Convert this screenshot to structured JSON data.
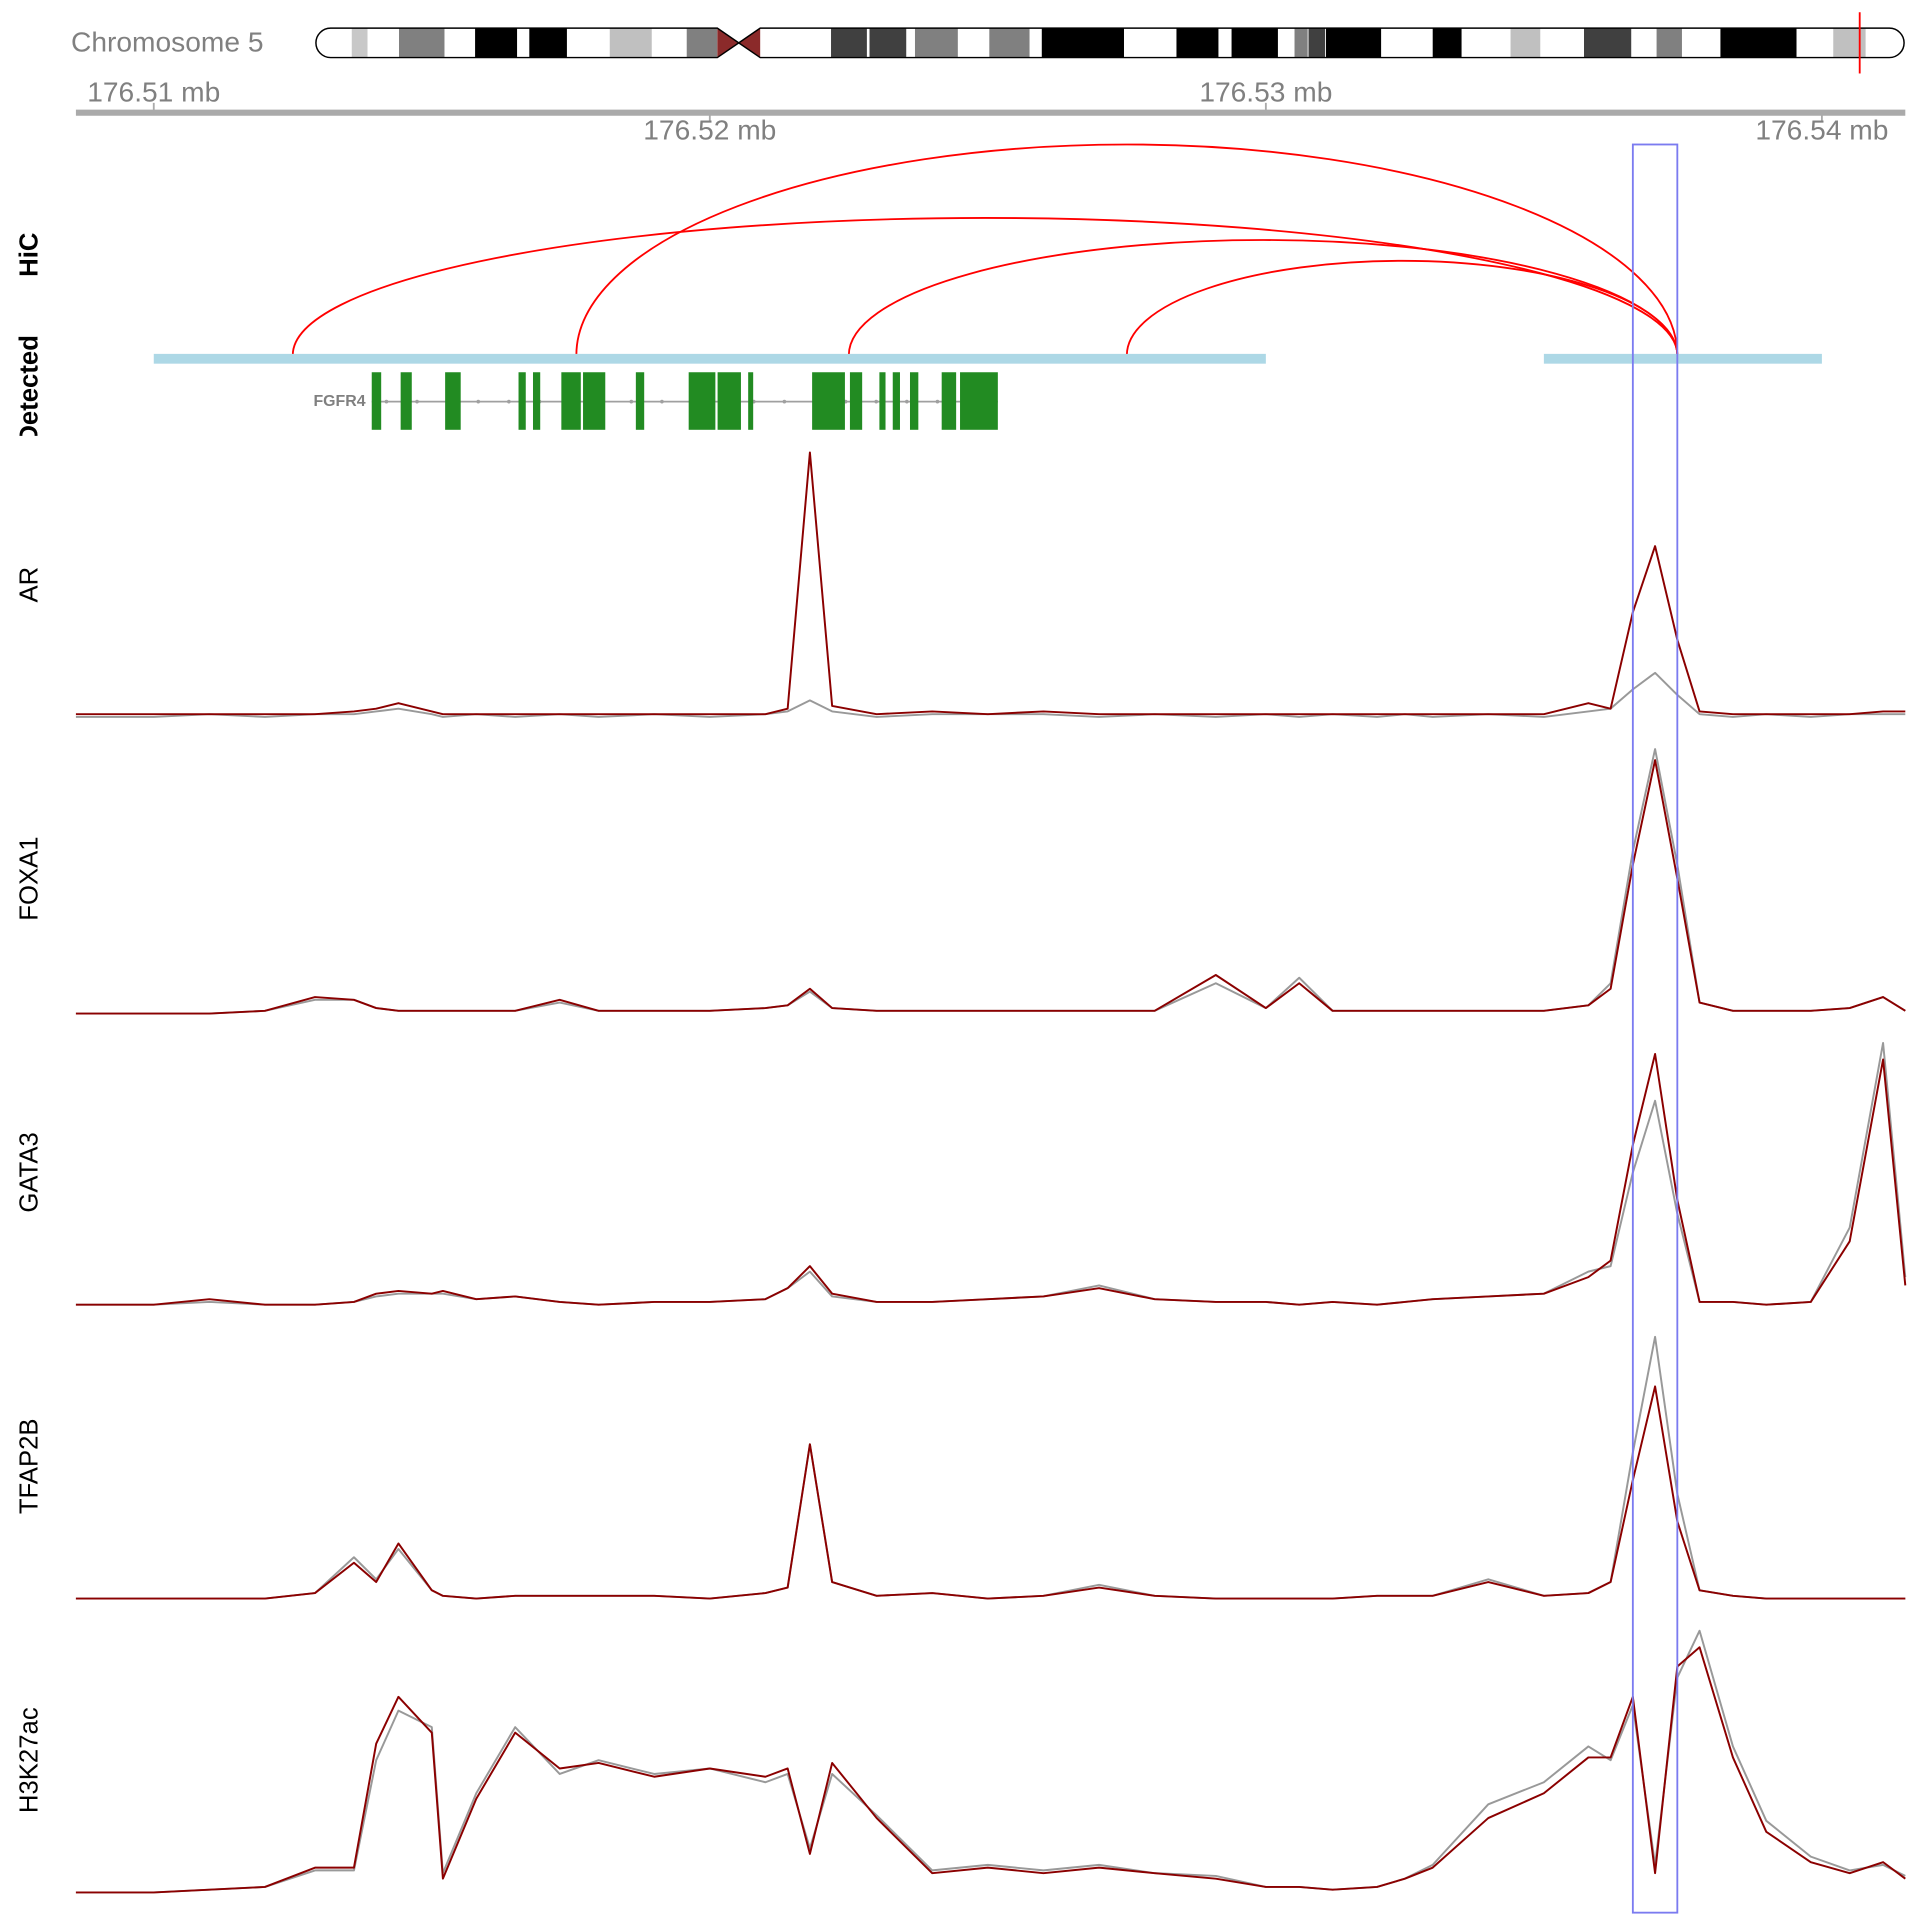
{
  "chart_data": {
    "type": "genome-tracks",
    "chromosome": "Chromosome 5",
    "ideogram": {
      "length": 181.6,
      "outline": "#000000",
      "marker_color": "#ff0000",
      "bands": [
        {
          "start": 4.1,
          "end": 5.9,
          "color": "#c8c8c8"
        },
        {
          "start": 9.5,
          "end": 14.7,
          "color": "#808080"
        },
        {
          "start": 18.2,
          "end": 23.0,
          "color": "#000000"
        },
        {
          "start": 24.4,
          "end": 28.7,
          "color": "#000000"
        },
        {
          "start": 33.6,
          "end": 38.4,
          "color": "#c0c0c0"
        },
        {
          "start": 42.4,
          "end": 45.9,
          "color": "#808080"
        },
        {
          "start": 58.9,
          "end": 63.0,
          "color": "#404040"
        },
        {
          "start": 63.3,
          "end": 67.5,
          "color": "#404040"
        },
        {
          "start": 68.5,
          "end": 73.4,
          "color": "#808080"
        },
        {
          "start": 77.0,
          "end": 81.6,
          "color": "#808080"
        },
        {
          "start": 83.0,
          "end": 92.4,
          "color": "#000000"
        },
        {
          "start": 98.4,
          "end": 103.2,
          "color": "#000000"
        },
        {
          "start": 104.7,
          "end": 110.0,
          "color": "#000000"
        },
        {
          "start": 111.9,
          "end": 113.4,
          "color": "#808080"
        },
        {
          "start": 113.5,
          "end": 115.4,
          "color": "#404040"
        },
        {
          "start": 115.5,
          "end": 121.8,
          "color": "#000000"
        },
        {
          "start": 127.7,
          "end": 131.0,
          "color": "#000000"
        },
        {
          "start": 136.6,
          "end": 140.0,
          "color": "#c0c0c0"
        },
        {
          "start": 145.0,
          "end": 150.4,
          "color": "#404040"
        },
        {
          "start": 153.3,
          "end": 156.2,
          "color": "#808080"
        },
        {
          "start": 160.6,
          "end": 169.3,
          "color": "#000000"
        },
        {
          "start": 173.5,
          "end": 177.2,
          "color": "#c0c0c0"
        }
      ],
      "centromere": {
        "start": 45.9,
        "end": 50.8,
        "color": "#8b2a2a"
      }
    },
    "xlim": [
      176.5086,
      176.5415
    ],
    "xticks": [
      {
        "value": 176.51,
        "label": "176.51 mb"
      },
      {
        "value": 176.52,
        "label": "176.52 mb"
      },
      {
        "value": 176.53,
        "label": "176.53 mb"
      },
      {
        "value": 176.54,
        "label": "176.54 mb"
      }
    ],
    "highlight": {
      "start": 176.5366,
      "end": 176.5374,
      "color": "#7b7bf0"
    },
    "hic": {
      "label": "HiC",
      "color": "#ff0000",
      "ylim": [
        0,
        180
      ],
      "arcs": [
        {
          "start": 176.5125,
          "end": 176.5374,
          "score": 112
        },
        {
          "start": 176.5176,
          "end": 176.5374,
          "score": 172
        },
        {
          "start": 176.5225,
          "end": 176.5374,
          "score": 94
        },
        {
          "start": 176.5275,
          "end": 176.5374,
          "score": 77
        }
      ]
    },
    "regions": {
      "label": "Detected",
      "color": "#add8e6",
      "ranges": [
        [
          176.51,
          176.53
        ],
        [
          176.535,
          176.54
        ]
      ]
    },
    "gene": {
      "name": "FGFR4",
      "color": "#228b22",
      "exons": [
        [
          176.51392,
          176.51409
        ],
        [
          176.51444,
          176.51464
        ],
        [
          176.51524,
          176.51552
        ],
        [
          176.51656,
          176.51669
        ],
        [
          176.51682,
          176.51695
        ],
        [
          176.51733,
          176.51768
        ],
        [
          176.51772,
          176.51812
        ],
        [
          176.51867,
          176.51882
        ],
        [
          176.51962,
          176.5201
        ],
        [
          176.52014,
          176.52056
        ],
        [
          176.52069,
          176.52078
        ],
        [
          176.52184,
          176.52243
        ],
        [
          176.52252,
          176.52274
        ],
        [
          176.52305,
          176.52316
        ],
        [
          176.52329,
          176.52342
        ],
        [
          176.5236,
          176.52375
        ],
        [
          176.52417,
          176.52443
        ],
        [
          176.5245,
          176.52518
        ]
      ]
    },
    "x": [
      176.5086,
      176.51,
      176.511,
      176.512,
      176.5129,
      176.5136,
      176.514,
      176.5144,
      176.515,
      176.5152,
      176.5158,
      176.5165,
      176.5173,
      176.518,
      176.519,
      176.52,
      176.521,
      176.5214,
      176.5218,
      176.5222,
      176.523,
      176.524,
      176.525,
      176.526,
      176.527,
      176.528,
      176.5291,
      176.53,
      176.5306,
      176.5312,
      176.532,
      176.5325,
      176.533,
      176.534,
      176.535,
      176.5358,
      176.5362,
      176.5366,
      176.537,
      176.5374,
      176.5378,
      176.5384,
      176.539,
      176.5398,
      176.5405,
      176.5411,
      176.5415
    ],
    "tracks": [
      {
        "label": "AR",
        "ylim": [
          0,
          100
        ],
        "series": [
          {
            "color": "#999999",
            "values": [
              2,
              2,
              3,
              2,
              3,
              3,
              4,
              5,
              3,
              2,
              3,
              2,
              3,
              2,
              3,
              2,
              3,
              4,
              8,
              4,
              2,
              3,
              3,
              3,
              2,
              3,
              2,
              3,
              2,
              3,
              2,
              3,
              2,
              3,
              2,
              4,
              5,
              12,
              18,
              10,
              3,
              2,
              3,
              2,
              3,
              3,
              3
            ]
          },
          {
            "color": "#8b0000",
            "values": [
              3,
              3,
              3,
              3,
              3,
              4,
              5,
              7,
              4,
              3,
              3,
              3,
              3,
              3,
              3,
              3,
              3,
              5,
              98,
              6,
              3,
              4,
              3,
              4,
              3,
              3,
              3,
              3,
              3,
              3,
              3,
              3,
              3,
              3,
              3,
              7,
              5,
              40,
              64,
              30,
              4,
              3,
              3,
              3,
              3,
              4,
              4
            ]
          }
        ]
      },
      {
        "label": "FOXA1",
        "ylim": [
          0,
          100
        ],
        "series": [
          {
            "color": "#999999",
            "values": [
              1,
              1,
              1,
              2,
              6,
              6,
              3,
              2,
              2,
              2,
              2,
              2,
              5,
              2,
              2,
              2,
              3,
              4,
              9,
              3,
              2,
              2,
              2,
              2,
              2,
              2,
              12,
              3,
              14,
              2,
              2,
              2,
              2,
              2,
              2,
              4,
              12,
              60,
              97,
              55,
              5,
              2,
              2,
              2,
              3,
              7,
              2
            ]
          },
          {
            "color": "#8b0000",
            "values": [
              1,
              1,
              1,
              2,
              7,
              6,
              3,
              2,
              2,
              2,
              2,
              2,
              6,
              2,
              2,
              2,
              3,
              4,
              10,
              3,
              2,
              2,
              2,
              2,
              2,
              2,
              15,
              3,
              12,
              2,
              2,
              2,
              2,
              2,
              2,
              4,
              10,
              55,
              93,
              50,
              5,
              2,
              2,
              2,
              3,
              7,
              2
            ]
          }
        ]
      },
      {
        "label": "GATA3",
        "ylim": [
          0,
          100
        ],
        "series": [
          {
            "color": "#999999",
            "values": [
              2,
              2,
              3,
              2,
              2,
              3,
              5,
              6,
              6,
              6,
              4,
              5,
              3,
              2,
              3,
              3,
              4,
              8,
              14,
              5,
              3,
              3,
              4,
              5,
              9,
              4,
              3,
              3,
              2,
              3,
              2,
              3,
              4,
              5,
              6,
              14,
              16,
              50,
              76,
              35,
              3,
              3,
              2,
              3,
              30,
              97,
              12
            ]
          },
          {
            "color": "#8b0000",
            "values": [
              2,
              2,
              4,
              2,
              2,
              3,
              6,
              7,
              6,
              7,
              4,
              5,
              3,
              2,
              3,
              3,
              4,
              8,
              16,
              6,
              3,
              3,
              4,
              5,
              8,
              4,
              3,
              3,
              2,
              3,
              2,
              3,
              4,
              5,
              6,
              12,
              18,
              60,
              93,
              40,
              3,
              3,
              2,
              3,
              25,
              91,
              9
            ]
          }
        ]
      },
      {
        "label": "TFAP2B",
        "ylim": [
          0,
          100
        ],
        "series": [
          {
            "color": "#999999",
            "values": [
              2,
              2,
              2,
              2,
              4,
              17,
              9,
              20,
              5,
              3,
              2,
              3,
              3,
              3,
              3,
              2,
              4,
              6,
              58,
              8,
              3,
              4,
              2,
              3,
              7,
              3,
              2,
              2,
              2,
              2,
              3,
              3,
              3,
              9,
              3,
              4,
              8,
              55,
              97,
              40,
              5,
              3,
              2,
              2,
              2,
              2,
              2
            ]
          },
          {
            "color": "#8b0000",
            "values": [
              2,
              2,
              2,
              2,
              4,
              15,
              8,
              22,
              5,
              3,
              2,
              3,
              3,
              3,
              3,
              2,
              4,
              6,
              58,
              8,
              3,
              4,
              2,
              3,
              6,
              3,
              2,
              2,
              2,
              2,
              3,
              3,
              3,
              8,
              3,
              4,
              8,
              45,
              79,
              30,
              5,
              3,
              2,
              2,
              2,
              2,
              2
            ]
          }
        ]
      },
      {
        "label": "H3K27ac",
        "ylim": [
          0,
          100
        ],
        "series": [
          {
            "color": "#999999",
            "values": [
              2,
              2,
              3,
              4,
              10,
              10,
              50,
              68,
              62,
              9,
              38,
              62,
              45,
              50,
              45,
              47,
              42,
              45,
              18,
              45,
              30,
              10,
              12,
              10,
              12,
              9,
              8,
              4,
              4,
              3,
              4,
              7,
              12,
              34,
              42,
              55,
              50,
              70,
              12,
              80,
              97,
              55,
              28,
              15,
              10,
              12,
              8
            ]
          },
          {
            "color": "#8b0000",
            "values": [
              2,
              2,
              3,
              4,
              11,
              11,
              56,
              73,
              60,
              7,
              36,
              60,
              47,
              49,
              44,
              47,
              44,
              47,
              16,
              49,
              29,
              9,
              11,
              9,
              11,
              9,
              7,
              4,
              4,
              3,
              4,
              7,
              11,
              29,
              38,
              51,
              51,
              73,
              9,
              84,
              91,
              51,
              24,
              13,
              9,
              13,
              7
            ]
          }
        ]
      }
    ]
  }
}
